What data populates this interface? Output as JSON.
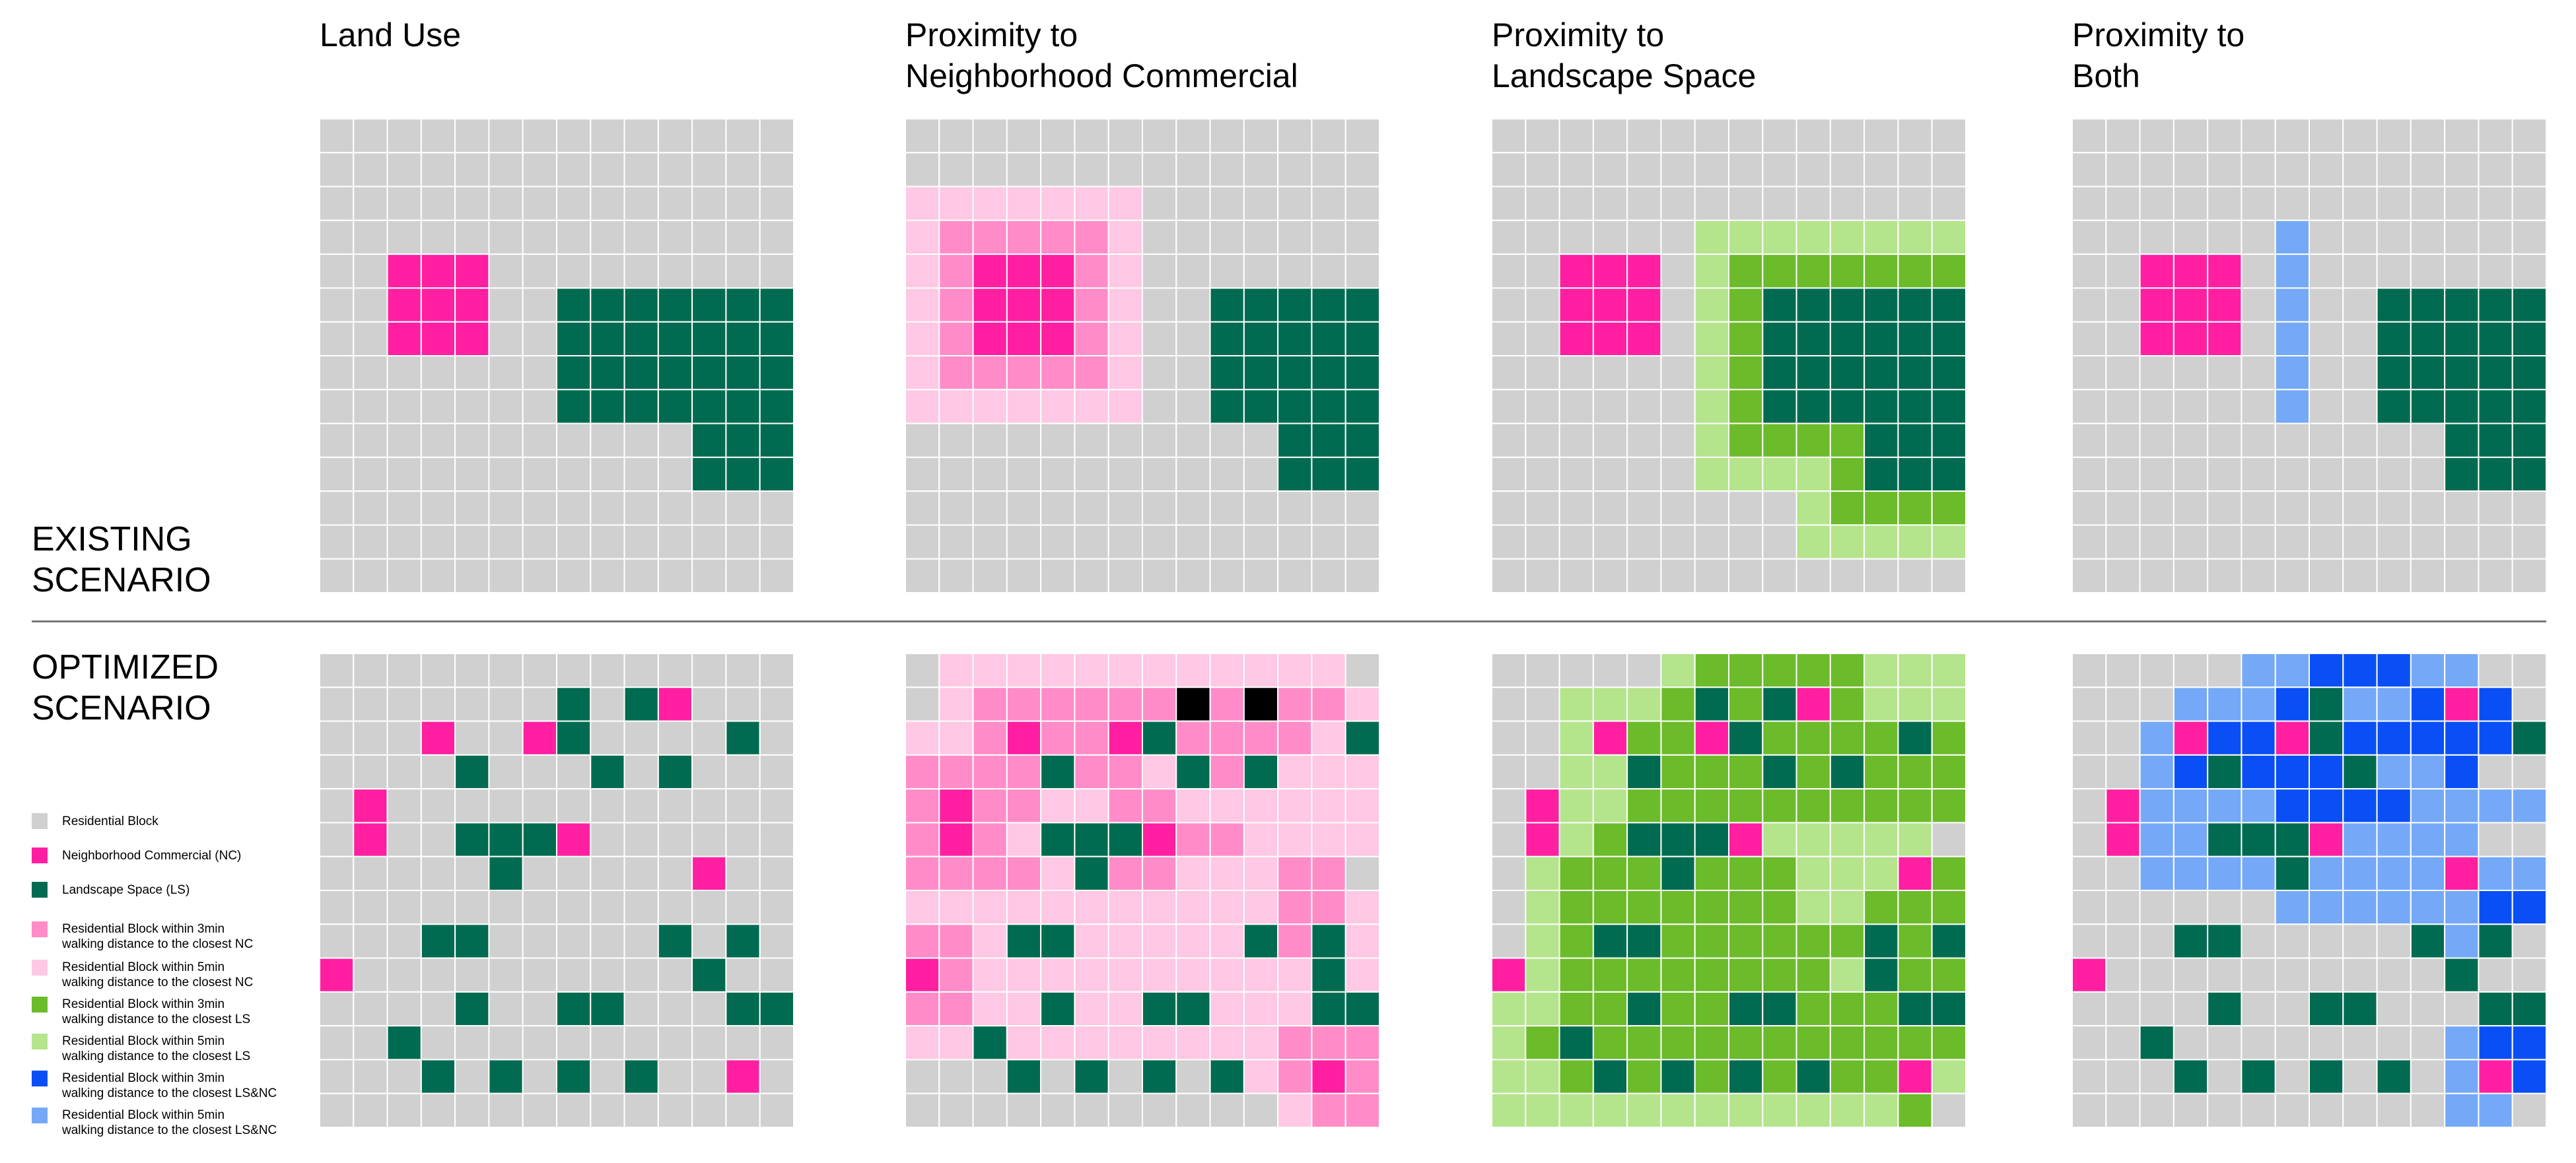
{
  "colors": {
    "R": "#d0d0d0",
    "N": "#ff1fa0",
    "L": "#006b50",
    "a": "#ff8cc8",
    "b": "#ffc8e4",
    "c": "#6cbb2a",
    "d": "#b4e48c",
    "e": "#0a4ff5",
    "f": "#75a9f7"
  },
  "column_titles": [
    {
      "line1": "",
      "line2": "Land Use"
    },
    {
      "line1": "Proximity to",
      "line2": "Neighborhood Commercial"
    },
    {
      "line1": "Proximity to",
      "line2": "Landscape Space"
    },
    {
      "line1": "Proximity to",
      "line2": "Both"
    }
  ],
  "row_titles": {
    "existing": {
      "line1": "EXISTING",
      "line2": "SCENARIO"
    },
    "optimized": {
      "line1": "OPTIMIZED",
      "line2": "SCENARIO"
    }
  },
  "legend": [
    {
      "key": "R",
      "line1": "Residential Block",
      "line2": ""
    },
    {
      "key": "N",
      "line1": "Neighborhood Commercial (NC)",
      "line2": ""
    },
    {
      "key": "L",
      "line1": "Landscape Space (LS)",
      "line2": ""
    },
    {
      "key": "a",
      "line1": "Residential Block within 3min",
      "line2": "walking distance to the closest NC"
    },
    {
      "key": "b",
      "line1": "Residential Block within 5min",
      "line2": "walking distance to the closest NC"
    },
    {
      "key": "c",
      "line1": "Residential Block within 3min",
      "line2": "walking distance to the closest LS"
    },
    {
      "key": "d",
      "line1": "Residential Block within 5min",
      "line2": "walking distance to the closest LS"
    },
    {
      "key": "e",
      "line1": "Residential Block within 3min",
      "line2": "walking distance to the closest LS&NC"
    },
    {
      "key": "f",
      "line1": "Residential Block within 5min",
      "line2": "walking distance to the closest LS&NC"
    }
  ],
  "grids": {
    "existing": [
      [
        "RRRRRRRRRRRRRR",
        "RRRRRRRRRRRRRR",
        "RRRRRRRRRRRRRR",
        "RRRRRRRRRRRRRR",
        "RRNNNRRRRRRRRR",
        "RRNNNRRLLLLLLL",
        "RRNNNRRLLLLLLL",
        "RRRRRRRLLLLLLL",
        "RRRRRRRLLLLLLL",
        "RRRRRRRRRRRLLL",
        "RRRRRRRRRRRLLL",
        "RRRRRRRRRRRRRR",
        "RRRRRRRRRRRRRR",
        "RRRRRRRRRRRRRR"
      ],
      [
        "RRRRRRRRRRRRRR",
        "RRRRRRRRRRRRRR",
        "bbbbbbbRRRRRRR",
        "baaaaabRRRRRRR",
        "baNNNabRRRRRRR",
        "baNNNabRRLLLLL",
        "baNNNabRRLLLLL",
        "baaaaabRRLLLLL",
        "bbbbbbbRRLLLLL",
        "RRRRRRRRRRRLLL",
        "RRRRRRRRRRRLLL",
        "RRRRRRRRRRRRRR",
        "RRRRRRRRRRRRRR",
        "RRRRRRRRRRRRRR"
      ],
      [
        "RRRRRRRRRRRRRR",
        "RRRRRRRRRRRRRR",
        "RRRRRRRRRRRRRR",
        "RRRRRRdddddddd",
        "RRNNNRdccccccc",
        "RRNNNRdcLLLLLL",
        "RRNNNRdcLLLLLL",
        "RRRRRRdcLLLLLL",
        "RRRRRRdcLLLLLL",
        "RRRRRRdccccLLL",
        "RRRRRRddddcLLL",
        "RRRRRRRRRdcccc",
        "RRRRRRRRRddddd",
        "RRRRRRRRRRRRRR"
      ],
      [
        "RRRRRRRRRRRRRR",
        "RRRRRRRRRRRRRR",
        "RRRRRRRRRRRRRR",
        "RRRRRRfRRRRRRR",
        "RRNNNRfRRRRRRR",
        "RRNNNRfRRLLLLL",
        "RRNNNRfRRLLLLL",
        "RRRRRRfRRLLLLL",
        "RRRRRRfRRLLLLL",
        "RRRRRRRRRRRLLL",
        "RRRRRRRRRRRLLL",
        "RRRRRRRRRRRRRR",
        "RRRRRRRRRRRRRR",
        "RRRRRRRRRRRRRR"
      ]
    ],
    "optimized": [
      [
        "RRRRRRRRRRRRRR",
        "RRRRRRRLRLNRRR",
        "RRRNRRNLRRRRLR",
        "RRRRLRRRLRLRRR",
        "RNRRRRRRRRRRRR",
        "RNRRLLLNRRRRRR",
        "RRRRRLRRRRRNRR",
        "RRRRRRRRRRRRRR",
        "RRRLLRRRRRLRLR",
        "NRRRRRRRRRRLRR",
        "RRRRLRRLLRRRLL",
        "RRLRRRRRRRRRRR",
        "RRRLRLRLRLRRNR",
        "RRRRRRRRRRRRRR"
      ],
      [
        "RbbbbbbbbbbbbR",
        "Rbaaaaaalalaab",
        "bbaNaaNLaaaabL",
        "aaaaLaabLaLbbb",
        "aNaabbaabbbbbb",
        "aNabLLLNaabbbb",
        "aaaabLaabbbaaR",
        "bbbbbbbbbbbaab",
        "aabLLbbbbbLaLb",
        "NabbbbbbbbbbLb",
        "aabbLbbLLbbbLL",
        "bbLbbbbbbbbaaa",
        "RRRLRLRLRLbaNa",
        "RRRRRRRRRRRbaa"
      ],
      [
        "RRRRRdcccccddd",
        "RRdddcLcLNcddd",
        "RRdNccNLccccLc",
        "RRddLcccLcLccc",
        "RNddcccccccccc",
        "RNdcLLLNdddddR",
        "RdcccLcccdddNc",
        "Rdcccccccddccc",
        "RdcLLccccccLcL",
        "NdccccccccdLcc",
        "ddccLccLLcccLL",
        "dcLccccccccccc",
        "ddcLcLcLcLccNd",
        "ddddddddddddcR"
      ],
      [
        "RRRRRffeeeffRR",
        "RRRfffeLffeNeR",
        "RRfNeeNLeeeeeL",
        "RRfeLeeeLffeRR",
        "RNffffeeeeffff",
        "RNffLLLNffffRR",
        "RRffffLffffNff",
        "RRRRRRffffffee",
        "RRRLLRRRRRLfLR",
        "NRRRRRRRRRRLRR",
        "RRRRLRRLLRRRLL",
        "RRLRRRRRRRRfee",
        "RRRLRLRLRLRfNe",
        "RRRRRRRRRRRffR"
      ]
    ]
  }
}
